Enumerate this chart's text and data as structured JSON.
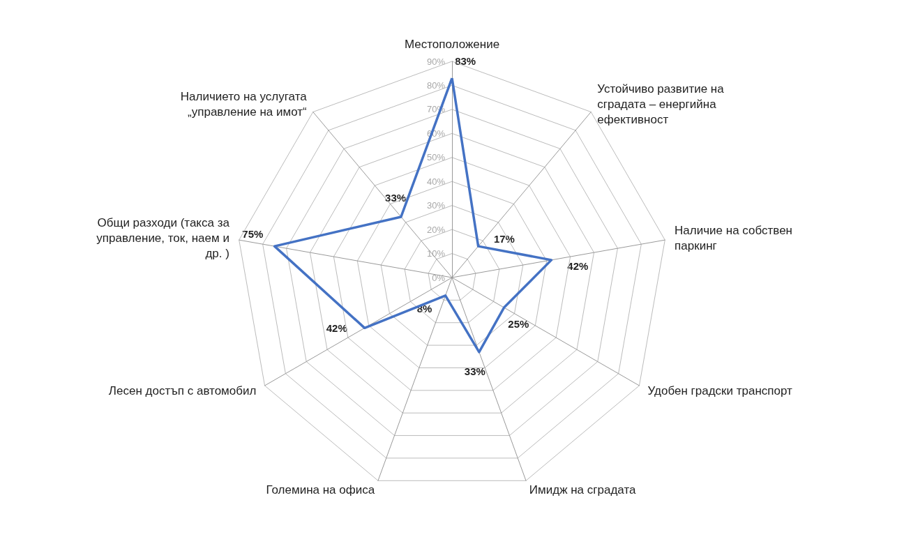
{
  "chart_data": {
    "type": "radar",
    "categories": [
      "Местоположение",
      "Устойчиво развитие на сградата – енергийна ефективност",
      "Наличие на собствен паркинг",
      "Удобен градски транспорт",
      "Имидж на сградата",
      "Големина на офиса",
      "Лесен достъп с автомобил",
      "Общи разходи (такса за управление, ток, наем и др. )",
      "Наличието на услугата „управление на имот“"
    ],
    "series": [
      {
        "color": "#4472c4",
        "values": [
          83,
          17,
          42,
          25,
          33,
          8,
          42,
          75,
          33
        ],
        "value_labels": [
          "83%",
          "17%",
          "42%",
          "25%",
          "33%",
          "8%",
          "42%",
          "75%",
          "33%"
        ]
      }
    ],
    "ylim": [
      0,
      90
    ],
    "yticks": [
      {
        "value": 0,
        "label": "0%"
      },
      {
        "value": 10,
        "label": "10%"
      },
      {
        "value": 20,
        "label": "20%"
      },
      {
        "value": 30,
        "label": "30%"
      },
      {
        "value": 40,
        "label": "40%"
      },
      {
        "value": 50,
        "label": "50%"
      },
      {
        "value": 60,
        "label": "60%"
      },
      {
        "value": 70,
        "label": "70%"
      },
      {
        "value": 80,
        "label": "80%"
      },
      {
        "value": 90,
        "label": "90%"
      }
    ],
    "grid": true,
    "marker": "none",
    "line_style": "solid"
  }
}
